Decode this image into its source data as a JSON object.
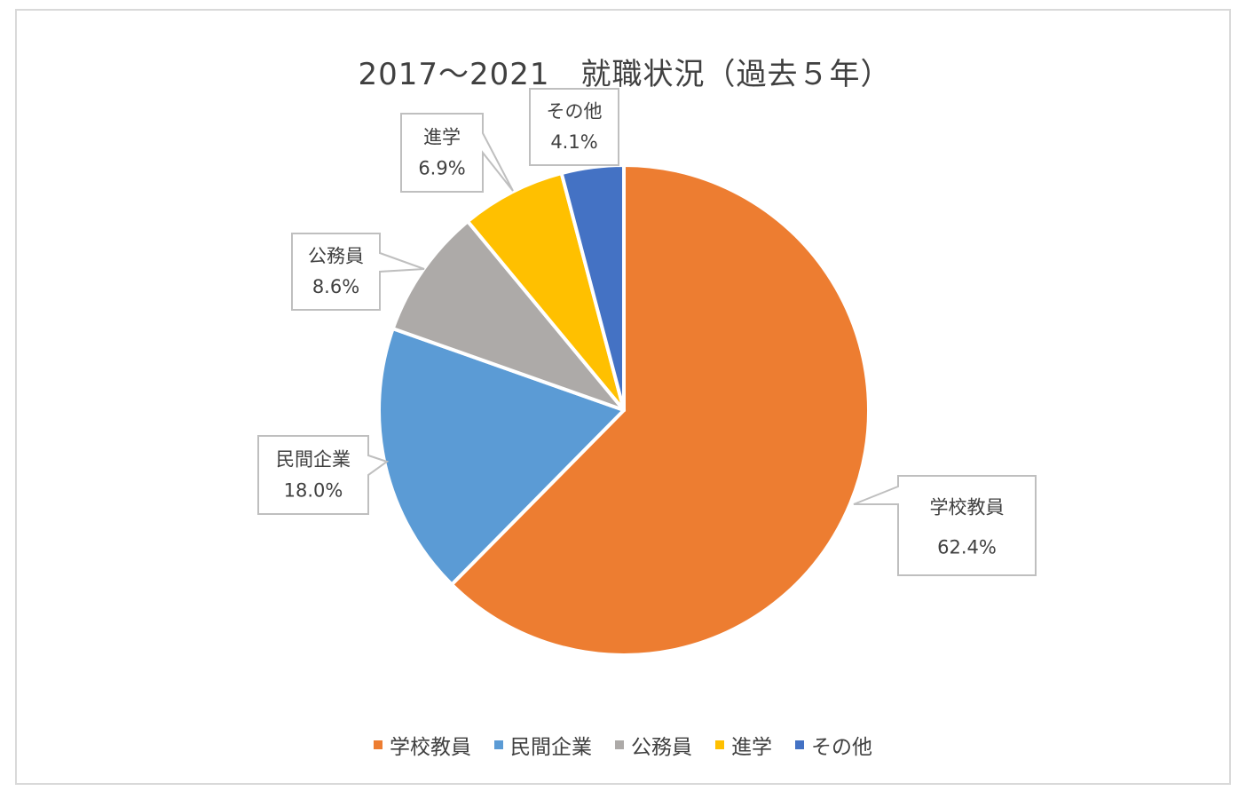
{
  "chart_data": {
    "type": "pie",
    "title": "2017～2021　就職状況（過去５年）",
    "categories": [
      "学校教員",
      "民間企業",
      "公務員",
      "進学",
      "その他"
    ],
    "values": [
      62.4,
      18.0,
      8.6,
      6.9,
      4.1
    ],
    "value_labels": [
      "62.4%",
      "18.0%",
      "8.6%",
      "6.9%",
      "4.1%"
    ],
    "colors": [
      "#ED7D31",
      "#5B9BD5",
      "#ADAAA8",
      "#FFC000",
      "#4472C4"
    ],
    "start_angle": "12 o'clock",
    "direction": "clockwise",
    "legend_position": "bottom"
  }
}
